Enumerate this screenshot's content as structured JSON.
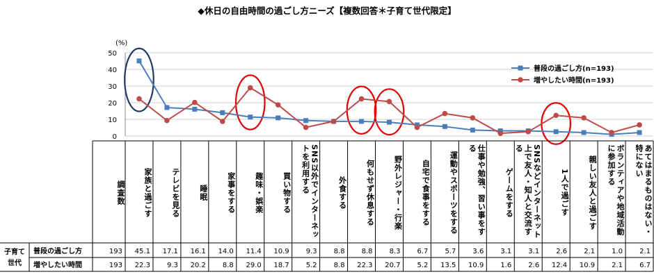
{
  "chart_data": {
    "type": "line",
    "title": "◆休日の自由時間の過ごし方ニーズ【複数回答＊子育て世代限定】",
    "y_unit": "(%)",
    "ylim": [
      0,
      50
    ],
    "y_ticks": [
      0,
      10,
      20,
      30,
      40,
      50
    ],
    "legend_position": "top-right",
    "categories": [
      "家族と過ごす",
      "テレビを見る",
      "睡眠",
      "家事をする",
      "趣味・娯楽",
      "買い物する",
      "SNS以外でインターネットを利用する",
      "外食する",
      "何もせず休息する",
      "野外レジャー・行楽",
      "自宅で食事をする",
      "運動やスポーツをする",
      "仕事や勉強、習い事をする",
      "ゲームをする",
      "SNSなどインターネット上で友人・知人と交流する",
      "1人で過ごす",
      "親しい友人と過ごす",
      "ボランティアや地域活動に参加する",
      "あてはまるものはない・特にない"
    ],
    "series": [
      {
        "name": "普段の過ごし方",
        "legend_label": "普段の過ごし方(n=193)",
        "color": "#4a7ebb",
        "marker": "square",
        "n": "193",
        "values": [
          45.1,
          17.1,
          16.1,
          14.0,
          11.4,
          10.9,
          9.3,
          8.8,
          8.8,
          8.3,
          6.7,
          5.7,
          3.6,
          3.1,
          3.1,
          2.6,
          2.1,
          1.0,
          2.1
        ]
      },
      {
        "name": "増やしたい時間",
        "legend_label": "増やしたい時間(n=193)",
        "color": "#be4b48",
        "marker": "circle",
        "n": "193",
        "values": [
          22.3,
          9.3,
          20.2,
          8.8,
          29.0,
          18.7,
          5.2,
          8.8,
          22.3,
          20.7,
          5.2,
          13.5,
          10.9,
          1.6,
          2.6,
          12.4,
          10.9,
          2.1,
          6.7
        ]
      }
    ],
    "highlights": [
      {
        "category_index": 0,
        "color": "#1f3864"
      },
      {
        "category_index": 4,
        "color": "#e00000"
      },
      {
        "category_index": 8,
        "color": "#e00000"
      },
      {
        "category_index": 9,
        "color": "#e00000"
      },
      {
        "category_index": 15,
        "color": "#e00000"
      }
    ]
  },
  "table": {
    "header_label": "調査数",
    "group_label": "子育て世代"
  }
}
